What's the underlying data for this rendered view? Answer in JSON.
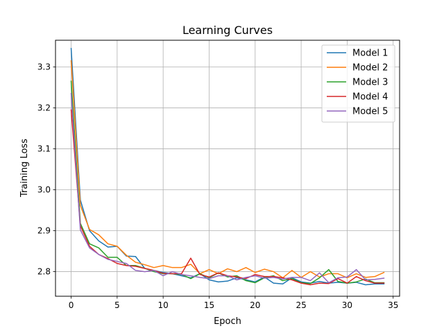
{
  "chart_data": {
    "type": "line",
    "title": "Learning Curves",
    "xlabel": "Epoch",
    "ylabel": "Training Loss",
    "xlim": [
      -1.7,
      35.7
    ],
    "ylim": [
      2.74,
      3.365
    ],
    "x_ticks": [
      0,
      5,
      10,
      15,
      20,
      25,
      30,
      35
    ],
    "x_tick_labels": [
      "0",
      "5",
      "10",
      "15",
      "20",
      "25",
      "30",
      "35"
    ],
    "y_ticks": [
      2.8,
      2.9,
      3.0,
      3.1,
      3.2,
      3.3
    ],
    "y_tick_labels": [
      "2.8",
      "2.9",
      "3.0",
      "3.1",
      "3.2",
      "3.3"
    ],
    "grid": true,
    "legend_position": "top-right",
    "x": [
      0,
      1,
      2,
      3,
      4,
      5,
      6,
      7,
      8,
      9,
      10,
      11,
      12,
      13,
      14,
      15,
      16,
      17,
      18,
      19,
      20,
      21,
      22,
      23,
      24,
      25,
      26,
      27,
      28,
      29,
      30,
      31,
      32,
      33,
      34
    ],
    "series": [
      {
        "name": "Model 1",
        "color": "#1f77b4",
        "values": [
          3.345,
          2.975,
          2.9,
          2.875,
          2.86,
          2.862,
          2.838,
          2.837,
          2.808,
          2.803,
          2.798,
          2.795,
          2.79,
          2.785,
          2.795,
          2.78,
          2.775,
          2.777,
          2.785,
          2.78,
          2.775,
          2.787,
          2.772,
          2.77,
          2.785,
          2.775,
          2.772,
          2.776,
          2.772,
          2.774,
          2.772,
          2.774,
          2.768,
          2.77,
          2.77
        ]
      },
      {
        "name": "Model 2",
        "color": "#ff7f0e",
        "values": [
          3.315,
          2.962,
          2.903,
          2.89,
          2.868,
          2.862,
          2.84,
          2.823,
          2.817,
          2.81,
          2.815,
          2.81,
          2.81,
          2.818,
          2.795,
          2.805,
          2.795,
          2.807,
          2.8,
          2.81,
          2.798,
          2.806,
          2.8,
          2.785,
          2.803,
          2.786,
          2.8,
          2.787,
          2.795,
          2.795,
          2.785,
          2.795,
          2.786,
          2.788,
          2.798
        ]
      },
      {
        "name": "Model 3",
        "color": "#2ca02c",
        "values": [
          3.265,
          2.918,
          2.868,
          2.858,
          2.835,
          2.835,
          2.815,
          2.815,
          2.808,
          2.8,
          2.795,
          2.795,
          2.793,
          2.783,
          2.795,
          2.785,
          2.797,
          2.787,
          2.79,
          2.778,
          2.773,
          2.785,
          2.79,
          2.778,
          2.783,
          2.773,
          2.771,
          2.785,
          2.805,
          2.776,
          2.772,
          2.775,
          2.782,
          2.773,
          2.773
        ]
      },
      {
        "name": "Model 4",
        "color": "#d62728",
        "values": [
          3.195,
          2.912,
          2.862,
          2.842,
          2.832,
          2.82,
          2.815,
          2.813,
          2.808,
          2.803,
          2.796,
          2.795,
          2.795,
          2.833,
          2.793,
          2.787,
          2.797,
          2.79,
          2.787,
          2.783,
          2.793,
          2.788,
          2.788,
          2.785,
          2.78,
          2.772,
          2.768,
          2.772,
          2.771,
          2.783,
          2.772,
          2.788,
          2.778,
          2.772,
          2.772
        ]
      },
      {
        "name": "Model 5",
        "color": "#9467bd",
        "values": [
          3.235,
          2.902,
          2.858,
          2.842,
          2.83,
          2.825,
          2.82,
          2.803,
          2.8,
          2.803,
          2.79,
          2.8,
          2.793,
          2.79,
          2.786,
          2.783,
          2.79,
          2.79,
          2.78,
          2.786,
          2.79,
          2.784,
          2.786,
          2.782,
          2.786,
          2.786,
          2.778,
          2.797,
          2.773,
          2.785,
          2.787,
          2.805,
          2.78,
          2.781,
          2.784
        ]
      }
    ]
  }
}
